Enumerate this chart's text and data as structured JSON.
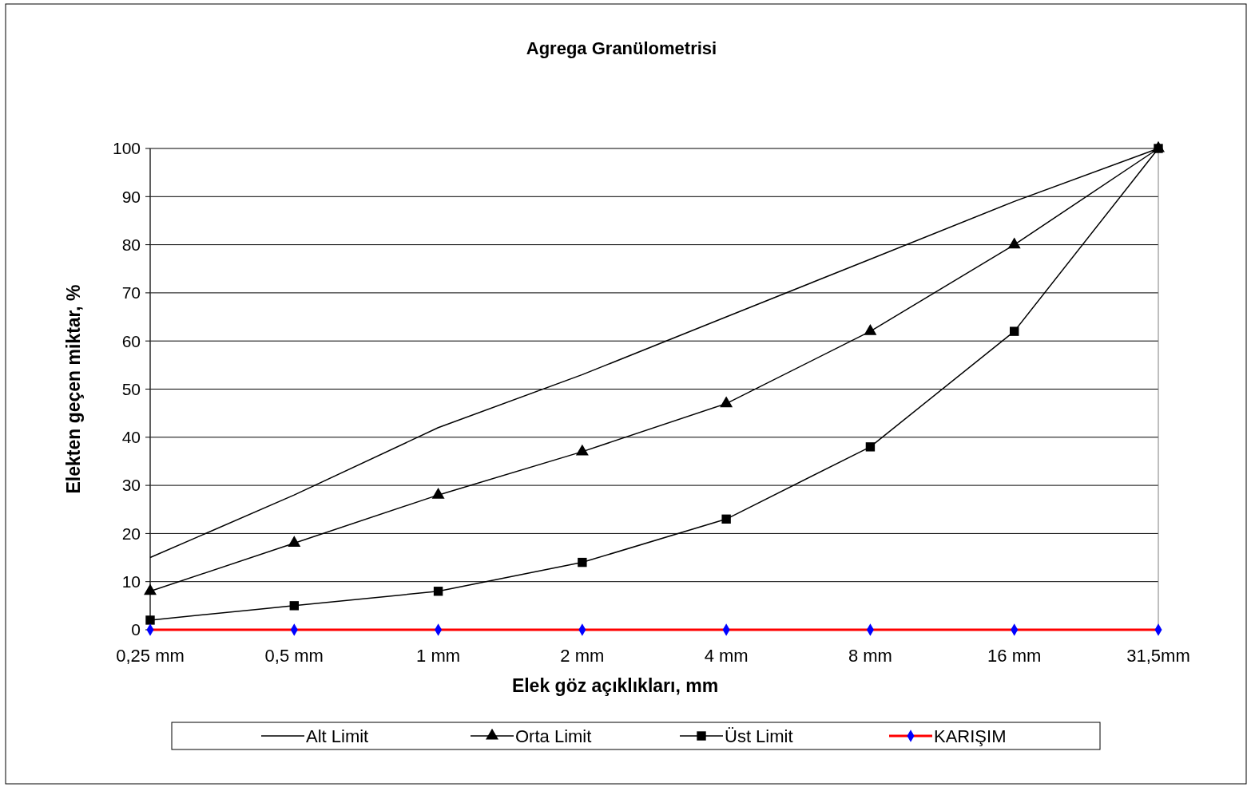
{
  "chart_data": {
    "type": "line",
    "title": "Agrega Granülometrisi",
    "xlabel": "Elek göz açıklıkları, mm",
    "ylabel": "Elekten geçen miktar, %",
    "categories": [
      "0,25 mm",
      "0,5 mm",
      "1 mm",
      "2 mm",
      "4 mm",
      "8 mm",
      "16 mm",
      "31,5mm"
    ],
    "series": [
      {
        "name": "Alt Limit",
        "color": "#000000",
        "marker": "none",
        "values": [
          15,
          28,
          42,
          53,
          65,
          77,
          89,
          100
        ]
      },
      {
        "name": "Orta Limit",
        "color": "#000000",
        "marker": "triangle",
        "values": [
          8,
          18,
          28,
          37,
          47,
          62,
          80,
          100
        ]
      },
      {
        "name": "Üst Limit",
        "color": "#000000",
        "marker": "square",
        "values": [
          2,
          5,
          8,
          14,
          23,
          38,
          62,
          100
        ]
      },
      {
        "name": "KARIŞIM",
        "color": "#ff0000",
        "marker": "diamond",
        "colors": [
          "#0000ff",
          "#0000ff",
          "#0000ff",
          "#0000ff",
          "#0000ff",
          "#0000ff",
          "#0000ff",
          "#0000ff"
        ],
        "values": [
          0,
          0,
          0,
          0,
          0,
          0,
          0,
          0
        ]
      }
    ],
    "ylim": [
      0,
      100
    ],
    "yticks": [
      0,
      10,
      20,
      30,
      40,
      50,
      60,
      70,
      80,
      90,
      100
    ],
    "grid": "y",
    "legend": "bottom"
  }
}
